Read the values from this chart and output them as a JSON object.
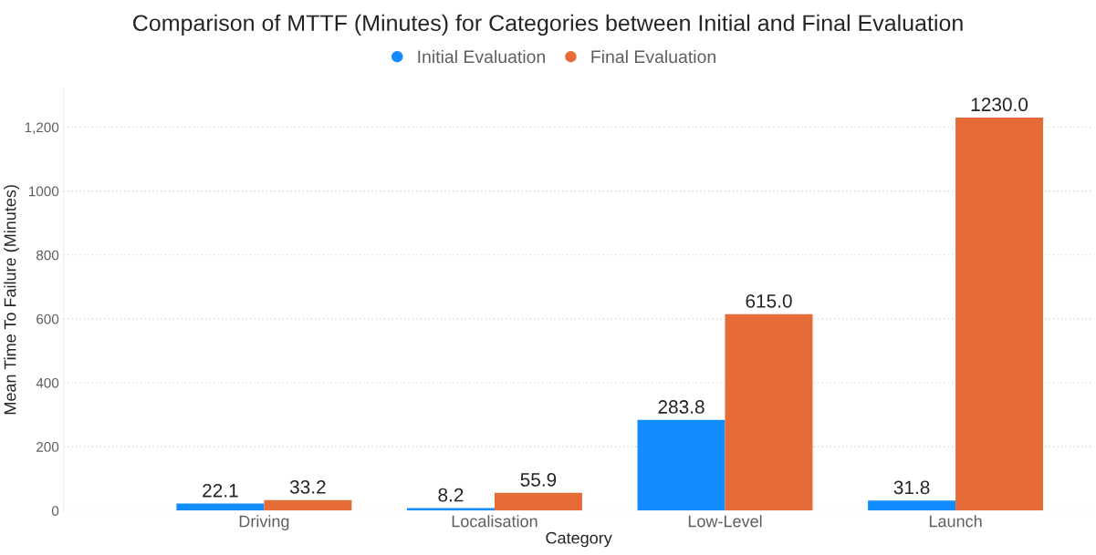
{
  "chart_data": {
    "type": "bar",
    "title": "Comparison of MTTF (Minutes) for Categories between Initial and Final Evaluation",
    "xlabel": "Category",
    "ylabel": "Mean Time To Failure (Minutes)",
    "categories": [
      "Driving",
      "Localisation",
      "Low-Level",
      "Launch"
    ],
    "series": [
      {
        "name": "Initial Evaluation",
        "color": "#118dff",
        "values": [
          22.1,
          8.2,
          283.8,
          31.8
        ],
        "value_labels": [
          "22.1",
          "8.2",
          "283.8",
          "31.8"
        ]
      },
      {
        "name": "Final Evaluation",
        "color": "#e66c37",
        "values": [
          33.2,
          55.9,
          615.0,
          1230.0
        ],
        "value_labels": [
          "33.2",
          "55.9",
          "615.0",
          "1230.0"
        ]
      }
    ],
    "ylim": [
      0,
      1320
    ],
    "yticks": [
      0,
      200,
      400,
      600,
      800,
      1000,
      {
        "value": 1200,
        "label": "1,200"
      }
    ],
    "grid": "y",
    "legend": "top"
  }
}
